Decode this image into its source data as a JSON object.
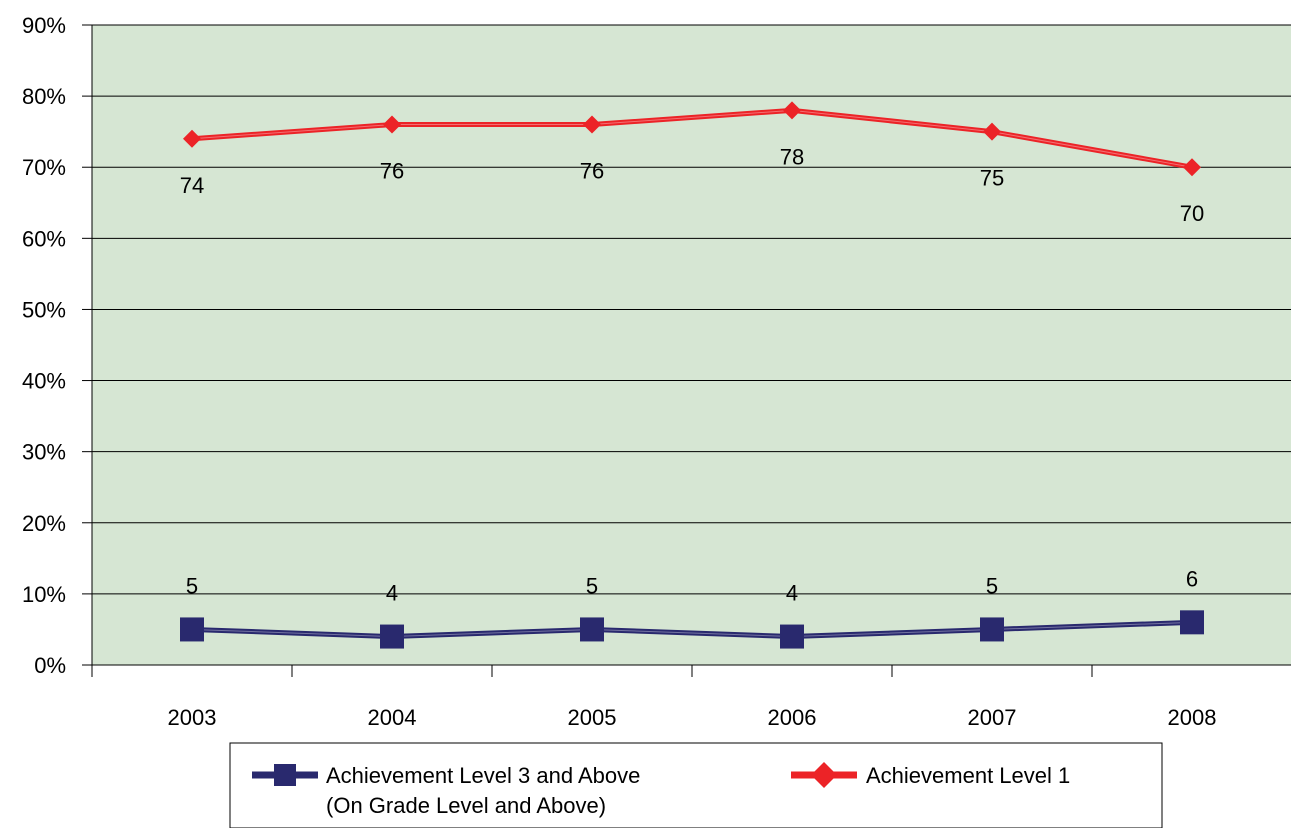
{
  "chart_data": {
    "type": "line",
    "categories": [
      "2003",
      "2004",
      "2005",
      "2006",
      "2007",
      "2008"
    ],
    "y_tick_labels": [
      "0%",
      "10%",
      "20%",
      "30%",
      "40%",
      "50%",
      "60%",
      "70%",
      "80%",
      "90%"
    ],
    "ylim": [
      0,
      90
    ],
    "grid": true,
    "legend_placement": "bottom",
    "plot_background": "#d6e6d3",
    "series": [
      {
        "name": "Achievement Level 3 and Above",
        "name_line2": "(On Grade Level and Above)",
        "values": [
          5,
          4,
          5,
          4,
          5,
          6
        ],
        "labels": [
          "5",
          "4",
          "5",
          "4",
          "5",
          "6"
        ],
        "color": "#29296e",
        "marker": "square"
      },
      {
        "name": "Achievement Level 1",
        "values": [
          74,
          76,
          76,
          78,
          75,
          70
        ],
        "labels": [
          "74",
          "76",
          "76",
          "78",
          "75",
          "70"
        ],
        "color": "#ec2327",
        "marker": "diamond"
      }
    ]
  }
}
